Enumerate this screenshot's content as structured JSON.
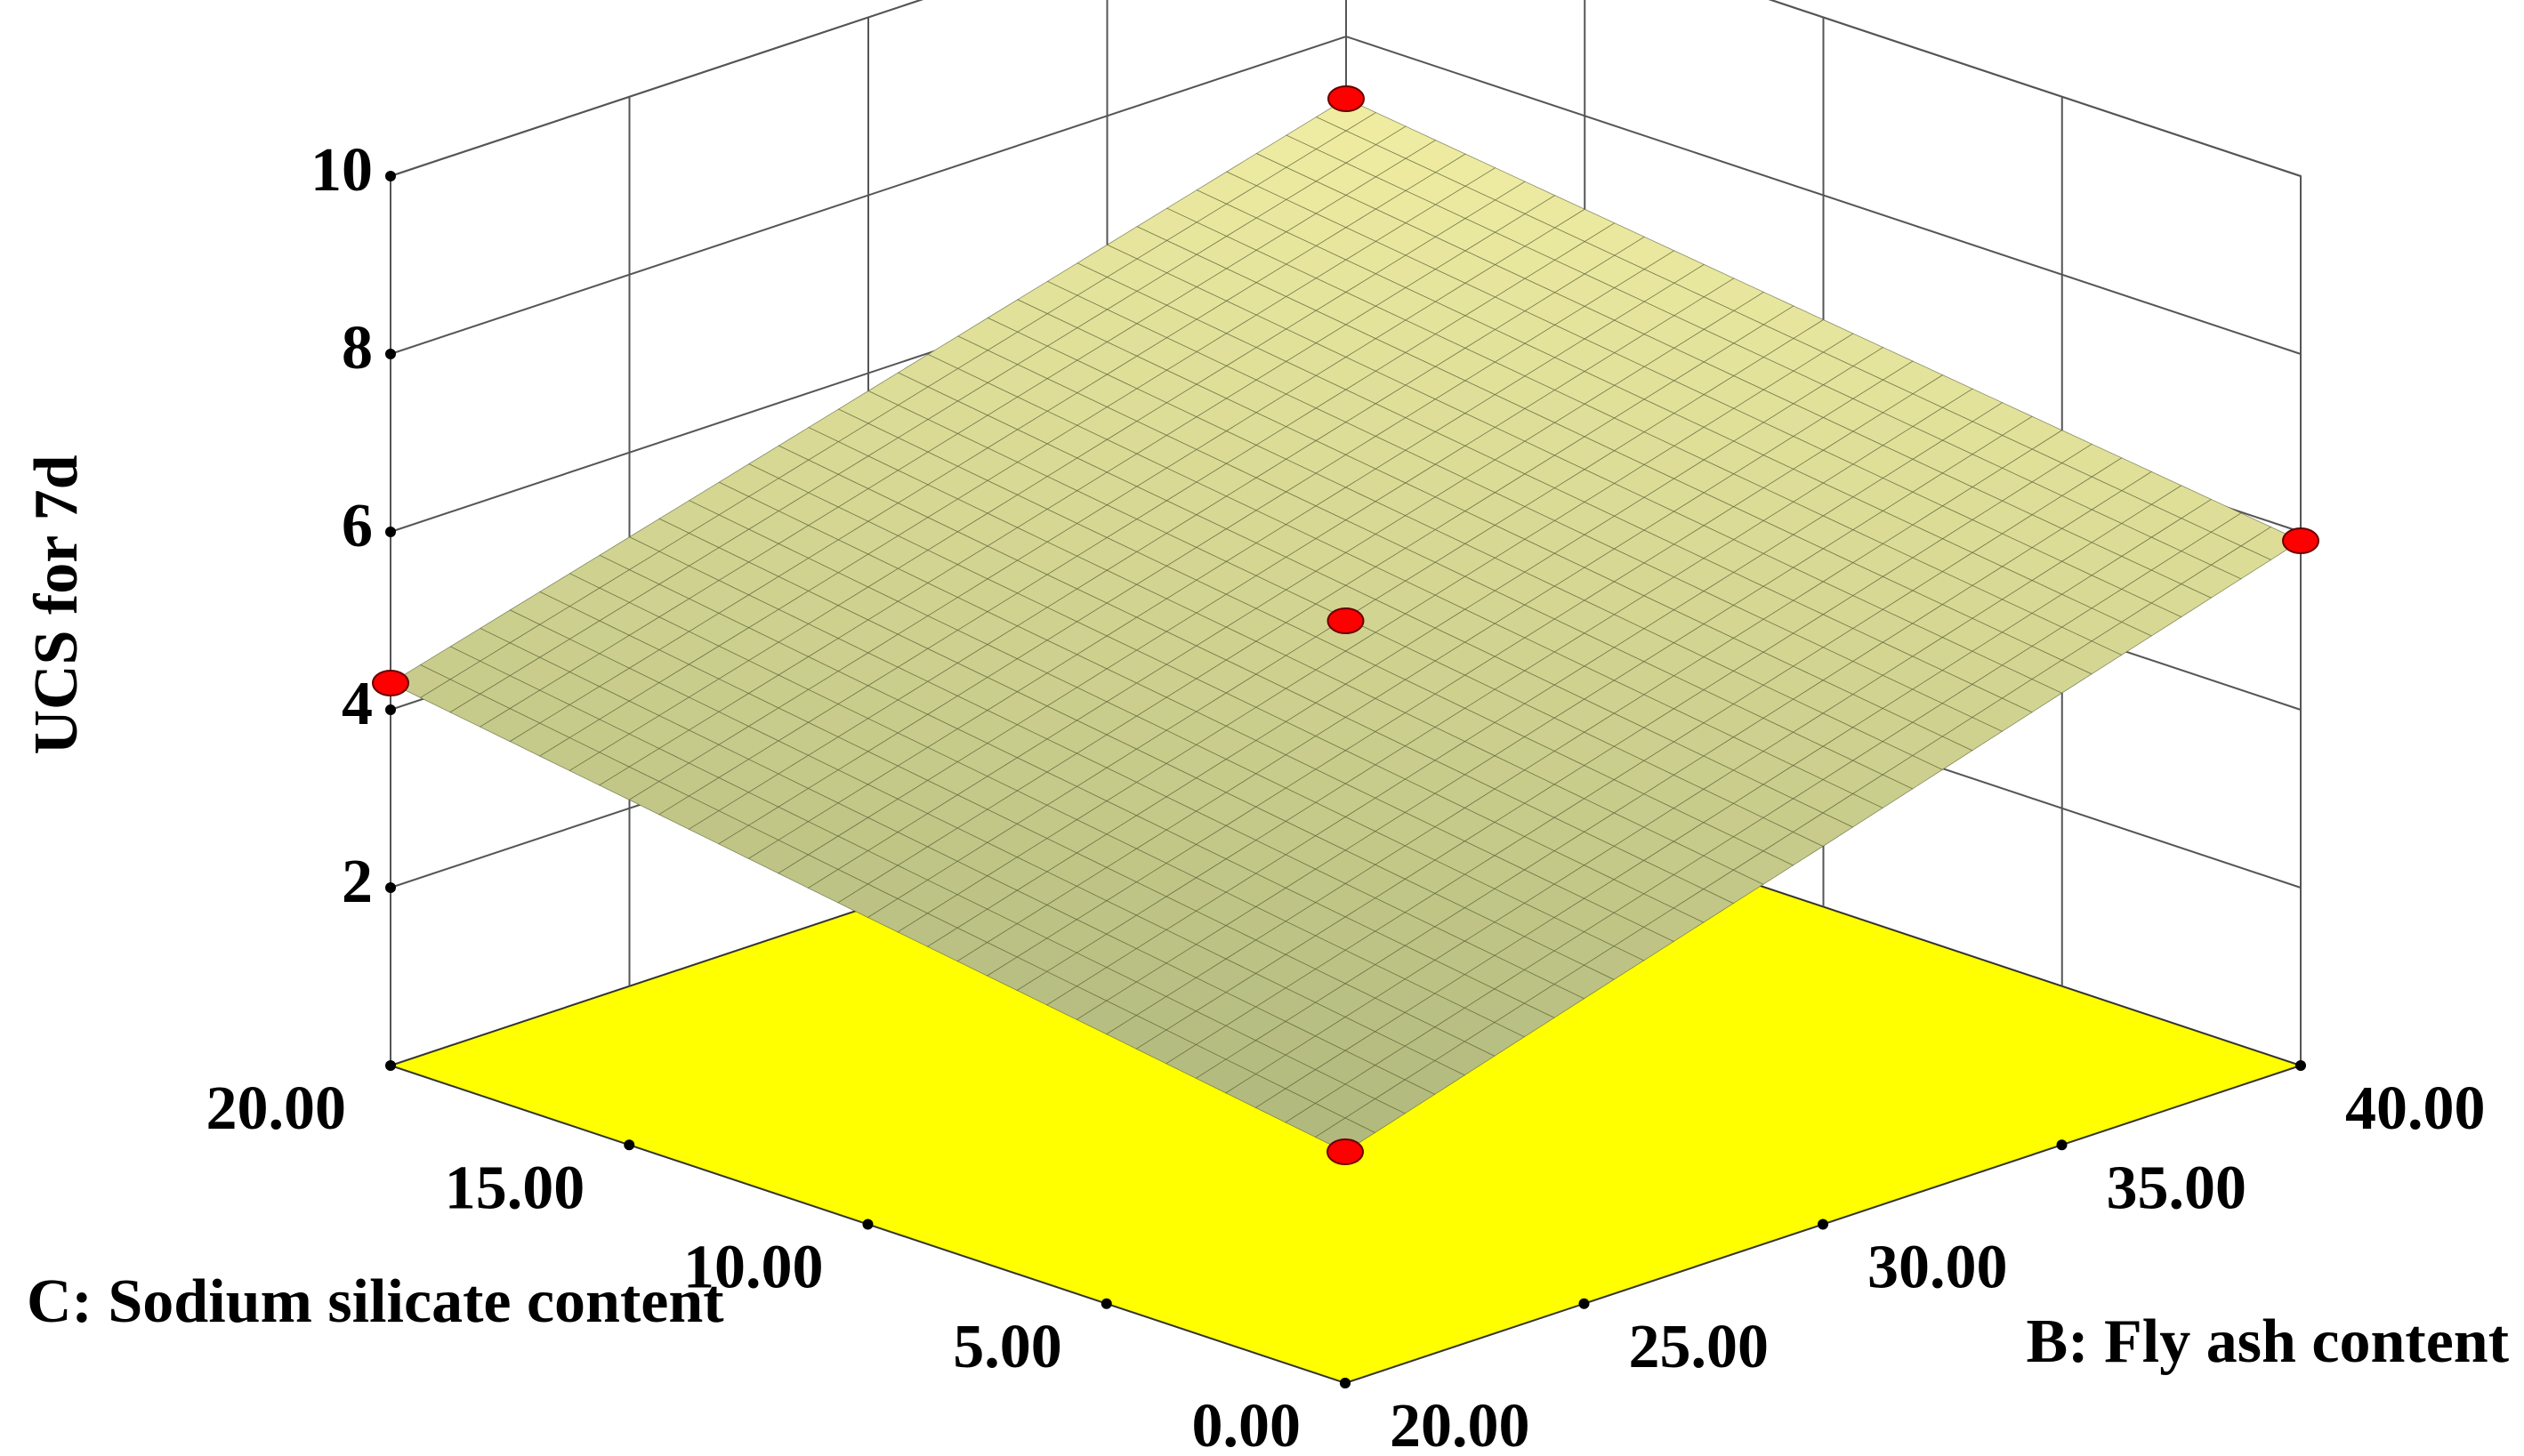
{
  "chart_data": {
    "type": "surface3d",
    "z_label": "UCS for 7d",
    "x_label": "B: Fly ash content",
    "y_label": "C: Sodium silicate content",
    "x": [
      20,
      25,
      30,
      35,
      40
    ],
    "y": [
      0,
      5,
      10,
      15,
      20
    ],
    "z": [
      [
        2.6,
        3.43,
        4.25,
        5.08,
        5.9
      ],
      [
        3.03,
        3.83,
        4.64,
        5.44,
        6.25
      ],
      [
        3.45,
        4.24,
        5.03,
        5.81,
        6.6
      ],
      [
        3.88,
        4.64,
        5.41,
        6.18,
        6.95
      ],
      [
        4.3,
        5.05,
        5.8,
        6.55,
        7.3
      ]
    ],
    "points": {
      "x": [
        20,
        40,
        20,
        40,
        30
      ],
      "y": [
        0,
        0,
        20,
        20,
        10
      ],
      "z": [
        2.6,
        5.9,
        4.3,
        7.3,
        5.0
      ]
    },
    "point_color": "#ff0000",
    "surface_colors": [
      "#8c9a68",
      "#f6f2a6"
    ],
    "mesh_color": "#5b6238",
    "floor_color": "#ffff00",
    "xlim": [
      20,
      40
    ],
    "ylim": [
      0,
      20
    ],
    "zlim": [
      0,
      10
    ],
    "xticks": [
      {
        "value": 20,
        "label": "20.00"
      },
      {
        "value": 25,
        "label": "25.00"
      },
      {
        "value": 30,
        "label": "30.00"
      },
      {
        "value": 35,
        "label": "35.00"
      },
      {
        "value": 40,
        "label": "40.00"
      }
    ],
    "yticks": [
      {
        "value": 0,
        "label": "0.00"
      },
      {
        "value": 5,
        "label": "5.00"
      },
      {
        "value": 10,
        "label": "10.00"
      },
      {
        "value": 15,
        "label": "15.00"
      },
      {
        "value": 20,
        "label": "20.00"
      }
    ],
    "zticks": [
      2,
      4,
      6,
      8,
      10
    ],
    "grid": true
  }
}
